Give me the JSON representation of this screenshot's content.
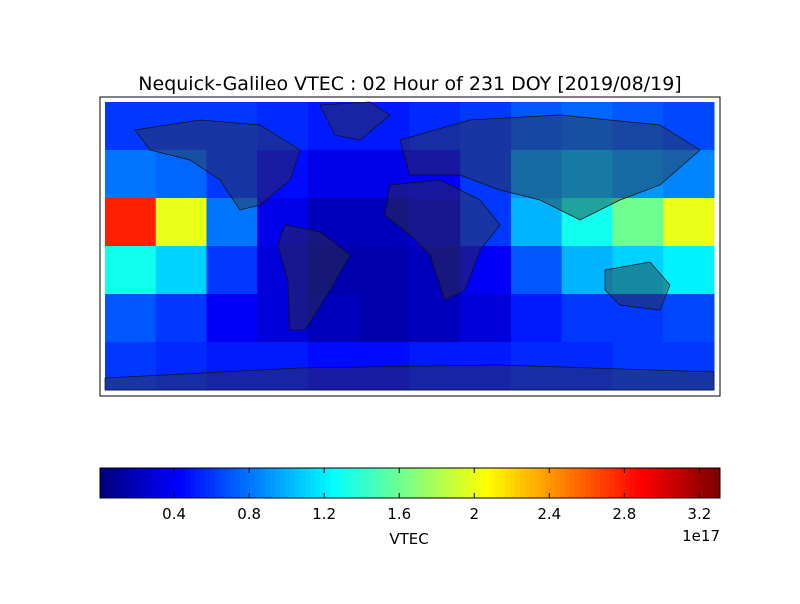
{
  "chart_data": {
    "type": "heatmap",
    "title": "Nequick-Galileo VTEC : 02 Hour of 231 DOY [2019/08/19]",
    "xlim": [
      -180,
      180
    ],
    "ylim": [
      -90,
      90
    ],
    "values": [
      [
        0.6,
        0.6,
        0.6,
        0.55,
        0.5,
        0.5,
        0.55,
        0.6,
        0.7,
        0.75,
        0.7,
        0.65
      ],
      [
        0.8,
        0.75,
        0.6,
        0.45,
        0.35,
        0.35,
        0.4,
        0.6,
        0.9,
        1.0,
        0.9,
        0.85
      ],
      [
        2.8,
        2.0,
        0.8,
        0.35,
        0.2,
        0.2,
        0.3,
        0.6,
        1.0,
        1.3,
        1.6,
        2.0
      ],
      [
        1.3,
        1.1,
        0.6,
        0.3,
        0.15,
        0.15,
        0.2,
        0.4,
        0.7,
        1.0,
        1.1,
        1.2
      ],
      [
        0.7,
        0.6,
        0.4,
        0.3,
        0.2,
        0.15,
        0.2,
        0.3,
        0.5,
        0.6,
        0.6,
        0.65
      ],
      [
        0.6,
        0.55,
        0.5,
        0.5,
        0.45,
        0.45,
        0.5,
        0.5,
        0.55,
        0.55,
        0.6,
        0.6
      ]
    ],
    "colormap": "jet",
    "clim": [
      0.005,
      3.31
    ],
    "cticks": [
      0.4,
      0.8,
      1.2,
      1.6,
      2.0,
      2.4,
      2.8,
      3.2
    ],
    "clabel": "VTEC",
    "coffset": "1e17"
  }
}
